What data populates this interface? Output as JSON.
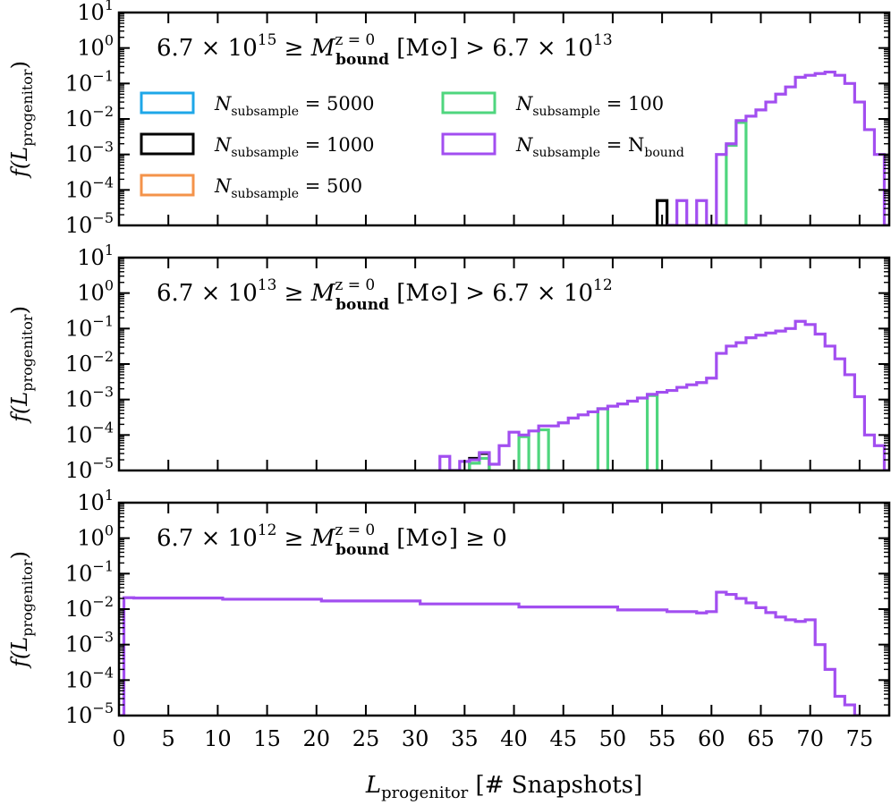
{
  "chart_data": {
    "type": "step-histogram",
    "xlabel": "L_progenitor [# Snapshots]",
    "xlabel_main": "L",
    "xlabel_sub": "progenitor",
    "xlabel_unit": " [# Snapshots]",
    "ylabel_main": "f(L",
    "ylabel_sub": "progenitor",
    "ylabel_close": ")",
    "xlim": [
      0,
      78
    ],
    "ylim": [
      1e-05,
      10
    ],
    "yscale": "log",
    "xticks": [
      0,
      5,
      10,
      15,
      20,
      25,
      30,
      35,
      40,
      45,
      50,
      55,
      60,
      65,
      70,
      75
    ],
    "ytick_base": "10",
    "yticks": [
      {
        "value": 10.0,
        "exp": "1"
      },
      {
        "value": 1.0,
        "exp": "0"
      },
      {
        "value": 0.1,
        "exp": "−1"
      },
      {
        "value": 0.01,
        "exp": "−2"
      },
      {
        "value": 0.001,
        "exp": "−3"
      },
      {
        "value": 0.0001,
        "exp": "−4"
      },
      {
        "value": 1e-05,
        "exp": "−5"
      }
    ],
    "legend": {
      "placement": "upper-left of top panel, two columns",
      "entries": [
        {
          "prefix": "N",
          "sub": "subsample",
          "suffix": " = 5000",
          "color": "#1ea7e8"
        },
        {
          "prefix": "N",
          "sub": "subsample",
          "suffix": " = 1000",
          "color": "#000000"
        },
        {
          "prefix": "N",
          "sub": "subsample",
          "suffix": " = 500",
          "color": "#f4934a"
        },
        {
          "prefix": "N",
          "sub": "subsample",
          "suffix": " = 100",
          "color": "#4fd67e"
        },
        {
          "prefix": "N",
          "sub": "subsample",
          "suffix": " = N",
          "sub2": "bound",
          "color": "#a24ef0"
        }
      ]
    },
    "panels": [
      {
        "annotation": {
          "pre": "6.7 × 10",
          "exp1": "15",
          "mid": " ≥ M",
          "sup": "z = 0",
          "sub": "bound",
          "unit": " [M⊙] > 6.7 × 10",
          "exp2": "13"
        },
        "series": [
          {
            "name": "N_subsample = 1000",
            "color": "#000000",
            "bins": [
              [
                54.5,
                55.5,
                5e-05
              ]
            ]
          },
          {
            "name": "N_subsample = 100",
            "color": "#4fd67e",
            "bins": [
              [
                61.5,
                62.5,
                0.0018
              ],
              [
                62.5,
                63.5,
                0.008
              ]
            ]
          },
          {
            "name": "N_subsample = N_bound",
            "color": "#a24ef0",
            "bins": [
              [
                55.5,
                56.5,
                1e-05
              ],
              [
                56.5,
                57.5,
                5e-05
              ],
              [
                57.5,
                58.5,
                1e-05
              ],
              [
                58.5,
                59.5,
                5e-05
              ],
              [
                59.5,
                60.5,
                1e-05
              ],
              [
                60.5,
                61.5,
                0.001
              ],
              [
                61.5,
                62.5,
                0.002
              ],
              [
                62.5,
                63.5,
                0.009
              ],
              [
                63.5,
                64.5,
                0.012
              ],
              [
                64.5,
                65.5,
                0.018
              ],
              [
                65.5,
                66.5,
                0.03
              ],
              [
                66.5,
                67.5,
                0.05
              ],
              [
                67.5,
                68.5,
                0.08
              ],
              [
                68.5,
                69.5,
                0.15
              ],
              [
                69.5,
                70.5,
                0.17
              ],
              [
                70.5,
                71.5,
                0.19
              ],
              [
                71.5,
                72.5,
                0.21
              ],
              [
                72.5,
                73.5,
                0.17
              ],
              [
                73.5,
                74.5,
                0.1
              ],
              [
                74.5,
                75.5,
                0.03
              ],
              [
                75.5,
                76.5,
                0.005
              ],
              [
                76.5,
                77.5,
                0.001
              ],
              [
                77.5,
                78.0,
                1e-05
              ]
            ]
          }
        ]
      },
      {
        "annotation": {
          "pre": "6.7 × 10",
          "exp1": "13",
          "mid": " ≥ M",
          "sup": "z = 0",
          "sub": "bound",
          "unit": " [M⊙] > 6.7 × 10",
          "exp2": "12"
        },
        "series": [
          {
            "name": "N_subsample = 1000",
            "color": "#000000",
            "bins": [
              [
                35.5,
                36.5,
                2.2e-05
              ],
              [
                36.5,
                37.5,
                3e-05
              ]
            ]
          },
          {
            "name": "N_subsample = 100",
            "color": "#4fd67e",
            "bins": [
              [
                35.5,
                36.5,
                1.6e-05
              ],
              [
                36.5,
                37.5,
                2.2e-05
              ],
              [
                40.5,
                41.5,
                9e-05
              ],
              [
                42.5,
                43.5,
                0.00014
              ],
              [
                48.5,
                49.5,
                0.00055
              ],
              [
                53.5,
                54.5,
                0.0013
              ]
            ]
          },
          {
            "name": "N_subsample = N_bound",
            "color": "#a24ef0",
            "bins": [
              [
                32.5,
                33.5,
                2.5e-05
              ],
              [
                33.5,
                34.5,
                1e-05
              ],
              [
                34.5,
                35.5,
                1.8e-05
              ],
              [
                35.5,
                36.5,
                2e-05
              ],
              [
                36.5,
                37.5,
                3.2e-05
              ],
              [
                37.5,
                38.5,
                1.5e-05
              ],
              [
                38.5,
                39.5,
                5e-05
              ],
              [
                39.5,
                40.5,
                0.00012
              ],
              [
                40.5,
                41.5,
                0.0001
              ],
              [
                41.5,
                42.5,
                0.00013
              ],
              [
                42.5,
                43.5,
                0.00018
              ],
              [
                43.5,
                44.5,
                0.00018
              ],
              [
                44.5,
                45.5,
                0.00022
              ],
              [
                45.5,
                46.5,
                0.0003
              ],
              [
                46.5,
                47.5,
                0.00037
              ],
              [
                47.5,
                48.5,
                0.00045
              ],
              [
                48.5,
                49.5,
                0.00055
              ],
              [
                49.5,
                50.5,
                0.00065
              ],
              [
                50.5,
                51.5,
                0.00075
              ],
              [
                51.5,
                52.5,
                0.0009
              ],
              [
                52.5,
                53.5,
                0.0011
              ],
              [
                53.5,
                54.5,
                0.0014
              ],
              [
                54.5,
                55.5,
                0.0016
              ],
              [
                55.5,
                56.5,
                0.0018
              ],
              [
                56.5,
                57.5,
                0.0022
              ],
              [
                57.5,
                58.5,
                0.0026
              ],
              [
                58.5,
                59.5,
                0.003
              ],
              [
                59.5,
                60.5,
                0.004
              ],
              [
                60.5,
                61.5,
                0.02
              ],
              [
                61.5,
                62.5,
                0.032
              ],
              [
                62.5,
                63.5,
                0.04
              ],
              [
                63.5,
                64.5,
                0.055
              ],
              [
                64.5,
                65.5,
                0.065
              ],
              [
                65.5,
                66.5,
                0.075
              ],
              [
                66.5,
                67.5,
                0.085
              ],
              [
                67.5,
                68.5,
                0.1
              ],
              [
                68.5,
                69.5,
                0.16
              ],
              [
                69.5,
                70.5,
                0.13
              ],
              [
                70.5,
                71.5,
                0.07
              ],
              [
                71.5,
                72.5,
                0.032
              ],
              [
                72.5,
                73.5,
                0.014
              ],
              [
                73.5,
                74.5,
                0.005
              ],
              [
                74.5,
                75.5,
                0.0012
              ],
              [
                75.5,
                76.5,
                0.0001
              ],
              [
                76.5,
                77.5,
                5e-05
              ],
              [
                77.5,
                78.0,
                1e-05
              ]
            ]
          }
        ]
      },
      {
        "annotation": {
          "pre": "6.7 × 10",
          "exp1": "12",
          "mid": " ≥ M",
          "sup": "z = 0",
          "sub": "bound",
          "unit": " [M⊙] ≥ 0",
          "exp2": ""
        },
        "series": [
          {
            "name": "N_subsample = N_bound",
            "color": "#a24ef0",
            "bins": [
              [
                0.0,
                0.5,
                1e-05
              ],
              [
                0.5,
                1.5,
                0.021
              ],
              [
                1.5,
                10.5,
                0.0205
              ],
              [
                10.5,
                20.5,
                0.019
              ],
              [
                20.5,
                30.5,
                0.017
              ],
              [
                30.5,
                40.5,
                0.014
              ],
              [
                40.5,
                50.5,
                0.0115
              ],
              [
                50.5,
                55.5,
                0.0095
              ],
              [
                55.5,
                58.5,
                0.0085
              ],
              [
                58.5,
                59.5,
                0.0078
              ],
              [
                59.5,
                60.5,
                0.0085
              ],
              [
                60.5,
                61.5,
                0.03
              ],
              [
                61.5,
                62.5,
                0.026
              ],
              [
                62.5,
                63.5,
                0.02
              ],
              [
                63.5,
                64.5,
                0.015
              ],
              [
                64.5,
                65.5,
                0.011
              ],
              [
                65.5,
                66.5,
                0.008
              ],
              [
                66.5,
                67.5,
                0.006
              ],
              [
                67.5,
                68.5,
                0.005
              ],
              [
                68.5,
                69.5,
                0.0045
              ],
              [
                69.5,
                70.5,
                0.005
              ],
              [
                70.5,
                71.5,
                0.001
              ],
              [
                71.5,
                72.5,
                0.0002
              ],
              [
                72.5,
                73.5,
                3.5e-05
              ],
              [
                73.5,
                74.5,
                2e-05
              ],
              [
                74.5,
                75.0,
                1e-05
              ]
            ]
          }
        ]
      }
    ]
  }
}
